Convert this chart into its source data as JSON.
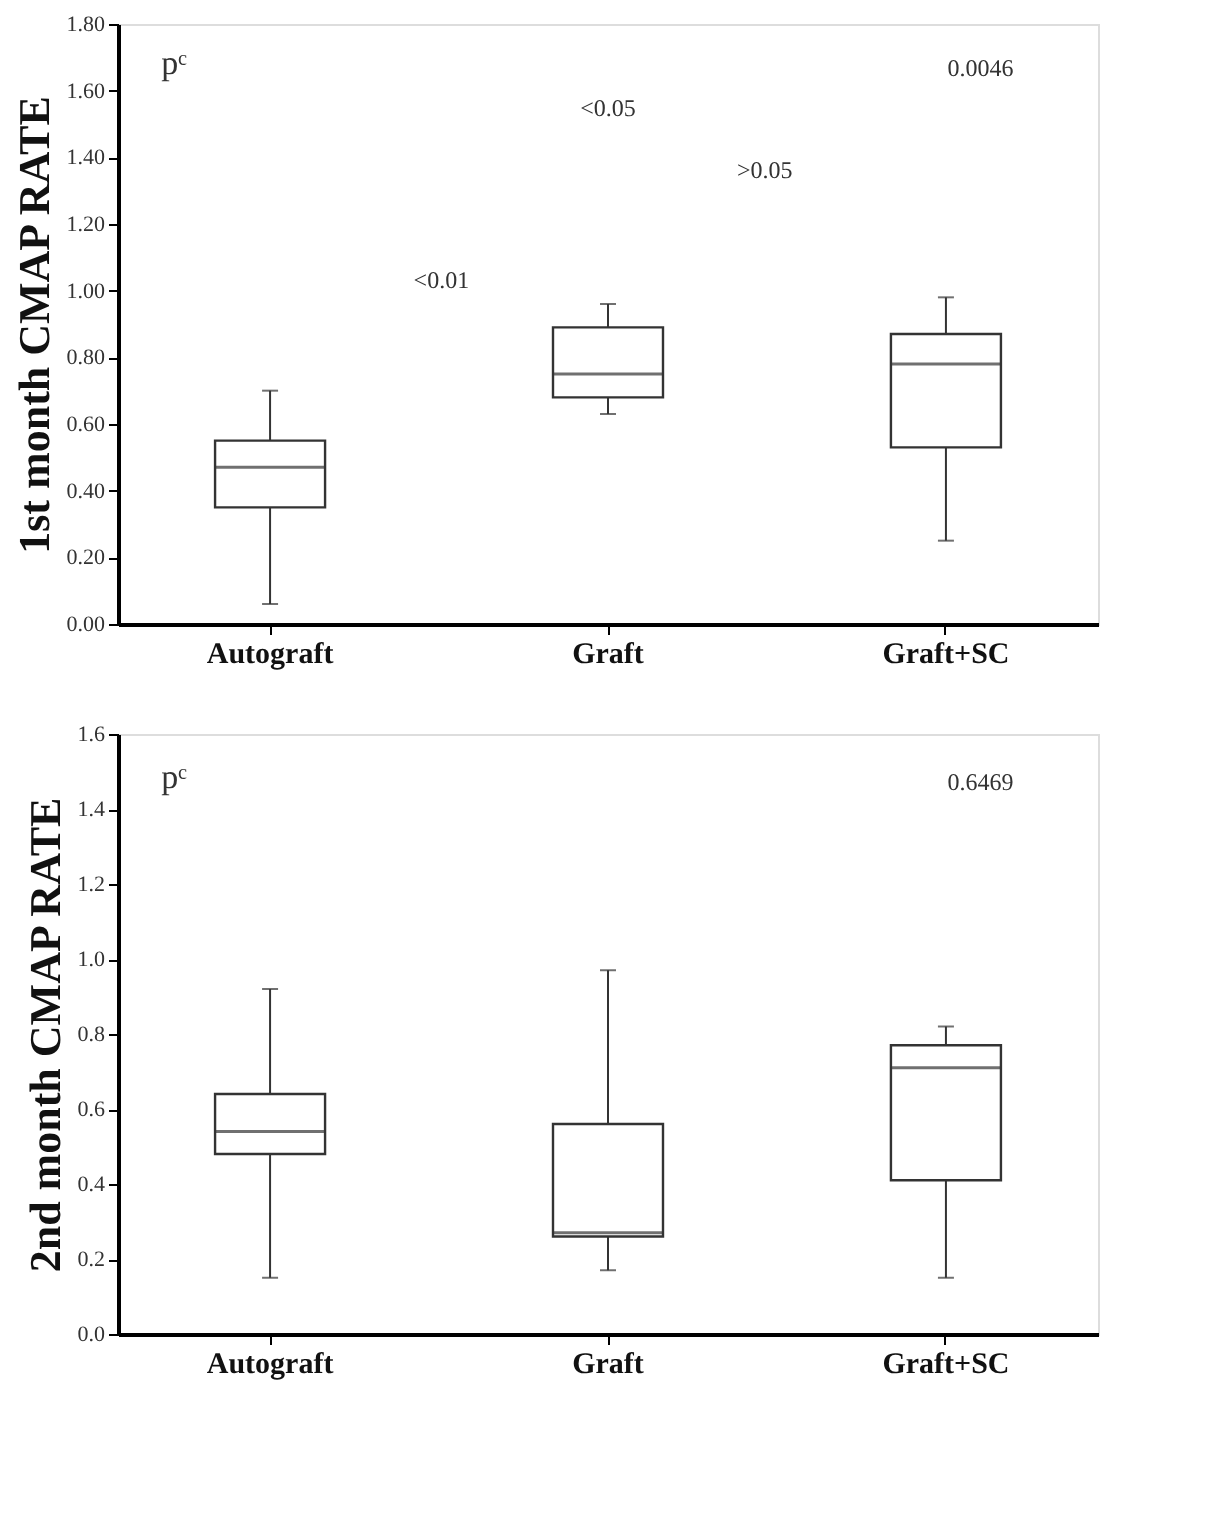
{
  "chart_data": [
    {
      "type": "box",
      "ylabel": "1st month CMAP RATE",
      "categories": [
        "Autograft",
        "Graft",
        "Graft+SC"
      ],
      "boxes": [
        {
          "low": 0.06,
          "q1": 0.35,
          "median": 0.47,
          "q3": 0.55,
          "high": 0.7
        },
        {
          "low": 0.63,
          "q1": 0.68,
          "median": 0.75,
          "q3": 0.89,
          "high": 0.96
        },
        {
          "low": 0.25,
          "q1": 0.53,
          "median": 0.78,
          "q3": 0.87,
          "high": 0.98
        }
      ],
      "ylim": [
        0,
        1.8
      ],
      "yticks": [
        {
          "value": 0,
          "label": "0.00"
        },
        {
          "value": 0.2,
          "label": "0.20"
        },
        {
          "value": 0.4,
          "label": "0.40"
        },
        {
          "value": 0.6,
          "label": "0.60"
        },
        {
          "value": 0.8,
          "label": "0.80"
        },
        {
          "value": 1,
          "label": "1.00"
        },
        {
          "value": 1.2,
          "label": "1.20"
        },
        {
          "value": 1.4,
          "label": "1.40"
        },
        {
          "value": 1.6,
          "label": "1.60"
        },
        {
          "value": 1.8,
          "label": "1.80"
        }
      ],
      "grid": false,
      "annotations": [
        "pᶜ",
        "<0.05",
        "0.0046",
        ">0.05",
        "<0.01"
      ]
    },
    {
      "type": "box",
      "ylabel": "2nd month CMAP RATE",
      "categories": [
        "Autograft",
        "Graft",
        "Graft+SC"
      ],
      "boxes": [
        {
          "low": 0.15,
          "q1": 0.48,
          "median": 0.54,
          "q3": 0.64,
          "high": 0.92
        },
        {
          "low": 0.17,
          "q1": 0.26,
          "median": 0.27,
          "q3": 0.56,
          "high": 0.97
        },
        {
          "low": 0.15,
          "q1": 0.41,
          "median": 0.71,
          "q3": 0.77,
          "high": 0.82
        }
      ],
      "ylim": [
        0,
        1.6
      ],
      "yticks": [
        {
          "value": 0,
          "label": "0.0"
        },
        {
          "value": 0.2,
          "label": "0.2"
        },
        {
          "value": 0.4,
          "label": "0.4"
        },
        {
          "value": 0.6,
          "label": "0.6"
        },
        {
          "value": 0.8,
          "label": "0.8"
        },
        {
          "value": 1,
          "label": "1.0"
        },
        {
          "value": 1.2,
          "label": "1.2"
        },
        {
          "value": 1.4,
          "label": "1.4"
        },
        {
          "value": 1.6,
          "label": "1.6"
        }
      ],
      "grid": false,
      "annotations": [
        "pᶜ",
        "0.6469"
      ]
    }
  ]
}
